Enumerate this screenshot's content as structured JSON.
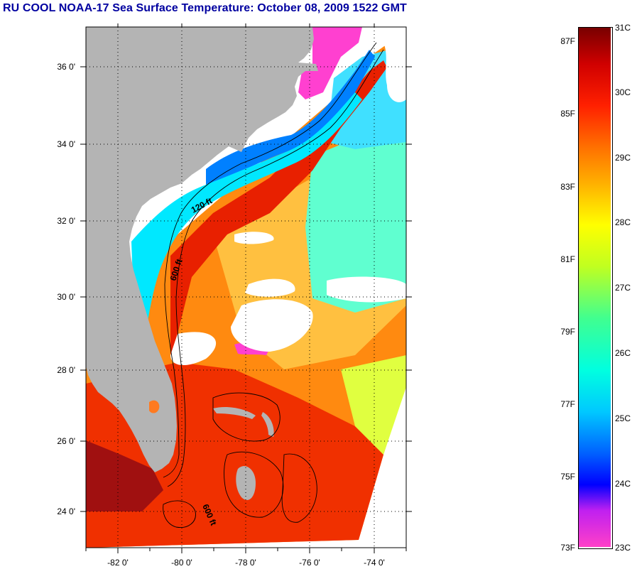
{
  "title": "RU COOL  NOAA-17  Sea Surface Temperature:  October 08, 2009 1522 GMT",
  "map": {
    "lat_labels": [
      "36 0'",
      "34 0'",
      "32 0'",
      "30 0'",
      "28 0'",
      "26 0'",
      "24 0'"
    ],
    "lon_labels": [
      "-82 0'",
      "-80 0'",
      "-78 0'",
      "-76 0'",
      "-74 0'"
    ],
    "contour_labels": [
      "120 ft",
      "600 ft",
      "600 ft"
    ]
  },
  "colorbar": {
    "fahrenheit_labels": [
      "87F",
      "85F",
      "83F",
      "81F",
      "79F",
      "77F",
      "75F",
      "73F"
    ],
    "celsius_labels": [
      "31C",
      "30C",
      "29C",
      "28C",
      "27C",
      "26C",
      "25C",
      "24C",
      "23C"
    ]
  },
  "colors": {
    "title": "#0000a0",
    "land": "#b4b4b4",
    "cloud": "#ffffff",
    "warm": "#e82000",
    "cool": "#00ffff",
    "cold": "#ff00ff"
  }
}
